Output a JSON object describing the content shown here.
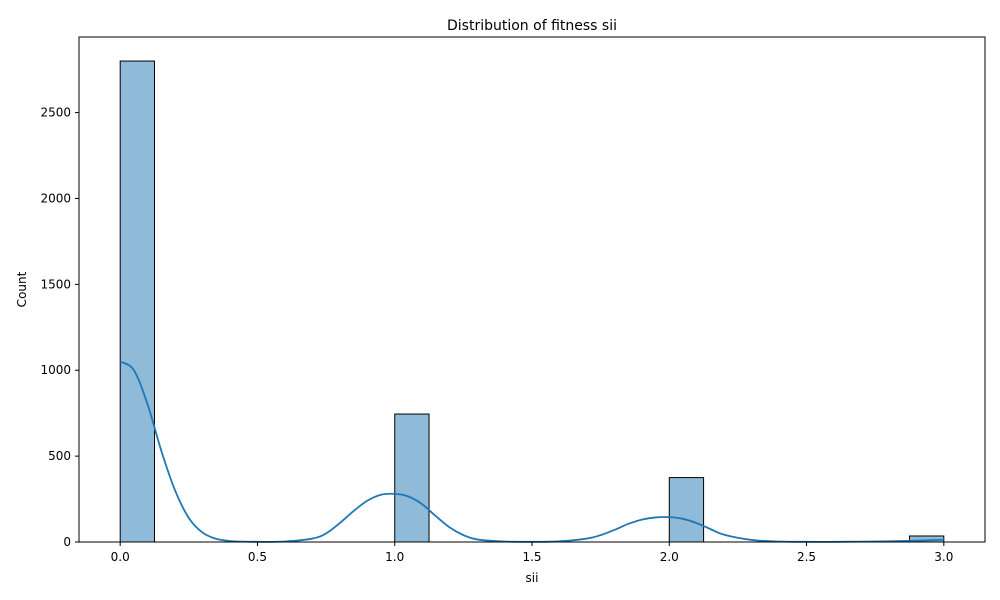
{
  "chart_data": {
    "type": "bar",
    "title": "Distribution of fitness sii",
    "xlabel": "sii",
    "ylabel": "Count",
    "xlim": [
      -0.15,
      3.15
    ],
    "ylim": [
      0,
      2940
    ],
    "xticks": [
      0.0,
      0.5,
      1.0,
      1.5,
      2.0,
      2.5,
      3.0
    ],
    "xtick_labels": [
      "0.0",
      "0.5",
      "1.0",
      "1.5",
      "2.0",
      "2.5",
      "3.0"
    ],
    "yticks": [
      0,
      500,
      1000,
      1500,
      2000,
      2500
    ],
    "ytick_labels": [
      "0",
      "500",
      "1000",
      "1500",
      "2000",
      "2500"
    ],
    "bin_width": 0.125,
    "bars": [
      {
        "x_start": 0.0,
        "x_end": 0.125,
        "count": 2800
      },
      {
        "x_start": 1.0,
        "x_end": 1.125,
        "count": 745
      },
      {
        "x_start": 2.0,
        "x_end": 2.125,
        "count": 375
      },
      {
        "x_start": 2.875,
        "x_end": 3.0,
        "count": 35
      }
    ],
    "kde": {
      "x": [
        0.0,
        0.05,
        0.1,
        0.15,
        0.2,
        0.25,
        0.3,
        0.35,
        0.4,
        0.45,
        0.5,
        0.6,
        0.7,
        0.75,
        0.8,
        0.85,
        0.9,
        0.95,
        1.0,
        1.05,
        1.1,
        1.15,
        1.2,
        1.25,
        1.3,
        1.4,
        1.5,
        1.6,
        1.7,
        1.75,
        1.8,
        1.85,
        1.9,
        1.95,
        2.0,
        2.05,
        2.1,
        2.15,
        2.2,
        2.3,
        2.4,
        2.5,
        2.6,
        2.7,
        2.8,
        2.9,
        3.0
      ],
      "y": [
        1050,
        1000,
        800,
        530,
        300,
        140,
        55,
        18,
        6,
        2,
        1,
        3,
        20,
        50,
        110,
        180,
        240,
        275,
        280,
        265,
        220,
        150,
        85,
        40,
        15,
        3,
        1,
        4,
        20,
        40,
        70,
        105,
        130,
        143,
        145,
        135,
        110,
        75,
        42,
        12,
        3,
        1,
        1,
        2,
        4,
        8,
        13
      ]
    },
    "grid": false,
    "legend": "none",
    "colors": {
      "bar_fill": "#8fbbd9",
      "bar_edge": "#000000",
      "kde_line": "#1f77b4"
    }
  }
}
